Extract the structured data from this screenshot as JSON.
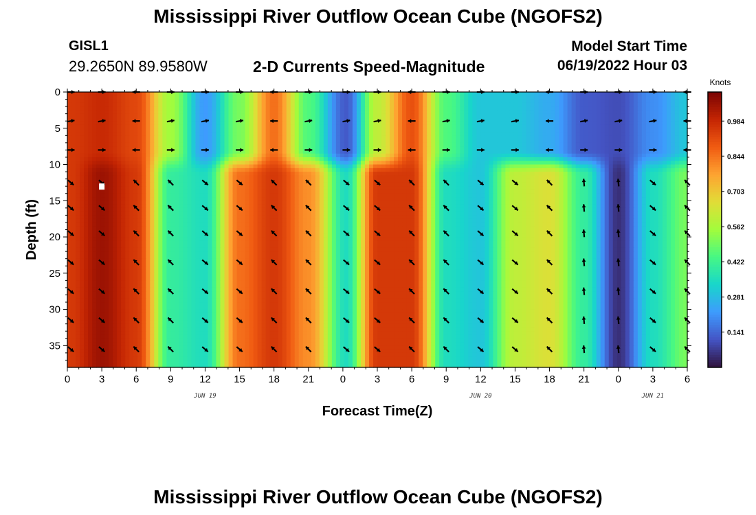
{
  "page": {
    "main_title": "Mississippi River Outflow Ocean Cube (NGOFS2)",
    "station_id": "GISL1",
    "station_coords": "29.2650N  89.9580W",
    "product_title": "2-D Currents Speed-Magnitude",
    "model_start_label": "Model Start Time",
    "model_start_value": "06/19/2022 Hour 03",
    "bottom_title": "Mississippi River Outflow Ocean Cube (NGOFS2)"
  },
  "chart_data": {
    "type": "heatmap",
    "title": "2-D Currents Speed-Magnitude",
    "xlabel": "Forecast Time(Z)",
    "ylabel": "Depth (ft)",
    "x_range_hours": [
      0,
      54
    ],
    "y_range_ft": [
      0,
      38
    ],
    "y_inverted": true,
    "x_ticks": [
      "0",
      "3",
      "6",
      "9",
      "12",
      "15",
      "18",
      "21",
      "0",
      "3",
      "6",
      "9",
      "12",
      "15",
      "18",
      "21",
      "0",
      "3",
      "6"
    ],
    "y_ticks": [
      0,
      5,
      10,
      15,
      20,
      25,
      30,
      35
    ],
    "date_labels": [
      {
        "text": "JUN 19",
        "hour": 12
      },
      {
        "text": "JUN 20",
        "hour": 36
      },
      {
        "text": "JUN 21",
        "hour": 51
      }
    ],
    "colorbar": {
      "unit": "Knots",
      "min": 0.0,
      "max": 1.1,
      "tick_labels": [
        "0.984",
        "0.844",
        "0.703",
        "0.562",
        "0.422",
        "0.281",
        "0.141"
      ],
      "tick_values": [
        0.984,
        0.844,
        0.703,
        0.562,
        0.422,
        0.281,
        0.141
      ],
      "colors": [
        "#30123b",
        "#4454c4",
        "#3e9bfe",
        "#18d6cb",
        "#46f884",
        "#a2fc3c",
        "#e1dd37",
        "#fea331",
        "#f05b12",
        "#c42503",
        "#7a0403"
      ]
    },
    "speed_profile": {
      "description": "Current speed (knots) at arrow columns; depths 0-10 ft surface layer, 10-38 ft lower layer",
      "times": [
        0.3,
        3,
        6,
        9,
        12,
        15,
        18,
        21,
        24.3,
        27,
        30,
        33,
        36,
        39,
        42,
        45,
        48,
        51,
        54
      ],
      "surface_speed": [
        0.95,
        0.98,
        0.92,
        0.55,
        0.22,
        0.5,
        0.85,
        0.45,
        0.12,
        0.6,
        0.9,
        0.45,
        0.3,
        0.3,
        0.25,
        0.12,
        0.1,
        0.2,
        0.3
      ],
      "deep_speed": [
        0.95,
        1.05,
        0.95,
        0.4,
        0.35,
        0.85,
        0.95,
        0.8,
        0.35,
        0.95,
        0.95,
        0.35,
        0.3,
        0.6,
        0.65,
        0.4,
        0.05,
        0.35,
        0.5
      ]
    },
    "vector_rows_ft": [
      0,
      4,
      8,
      12.5,
      16,
      19.5,
      23.5,
      27.5,
      31.5,
      35.5
    ],
    "marker": {
      "hour": 3,
      "depth_ft": 13
    }
  }
}
